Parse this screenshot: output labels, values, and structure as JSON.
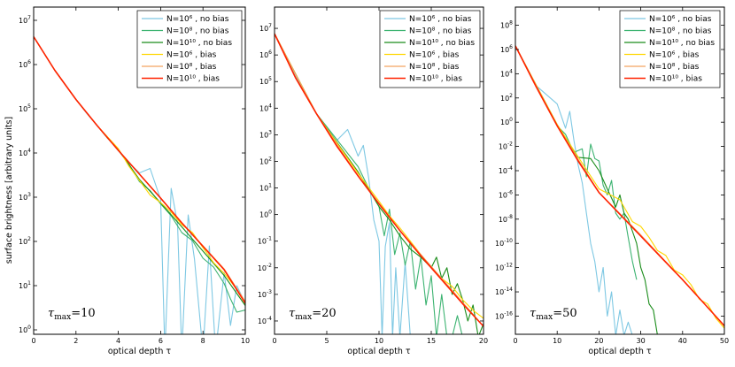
{
  "chart_data": [
    {
      "type": "line",
      "id": "panel1",
      "xlabel": "optical depth τ",
      "ylabel": "surface brightness [arbitrary units]",
      "xlim": [
        0,
        10
      ],
      "ylim_log10": [
        -0.1,
        7.3
      ],
      "x_ticks": [
        0,
        2,
        4,
        6,
        8,
        10
      ],
      "y_tick_exponents": [
        0,
        1,
        2,
        3,
        4,
        5,
        6,
        7
      ],
      "annotation": {
        "text": "τ",
        "sub": "max",
        "value": "=10"
      },
      "legend_position": "top-right",
      "series": [
        {
          "name": "N=10⁶ , no bias",
          "color": "#7ec8e3",
          "x": [
            0,
            1,
            2,
            2.5,
            3,
            3.5,
            4,
            4.5,
            5,
            5.5,
            6,
            6.2,
            6.5,
            6.8,
            7,
            7.3,
            7.6,
            8,
            8.3,
            8.6,
            9,
            9.3,
            9.6,
            10
          ],
          "y_log10": [
            6.63,
            5.87,
            5.21,
            4.9,
            4.62,
            4.34,
            4.05,
            3.78,
            3.55,
            3.65,
            2.95,
            -0.5,
            3.2,
            2.4,
            -0.5,
            2.6,
            1.6,
            -0.5,
            1.9,
            -0.5,
            1.3,
            0.1,
            1.0,
            0.6
          ]
        },
        {
          "name": "N=10⁸ , no bias",
          "color": "#3cb371",
          "x": [
            0,
            1,
            2,
            3,
            3.5,
            4,
            4.5,
            5,
            5.5,
            6,
            6.5,
            7,
            7.5,
            8,
            8.5,
            9,
            9.3,
            9.6,
            10
          ],
          "y_log10": [
            6.63,
            5.87,
            5.21,
            4.62,
            4.33,
            4.08,
            3.75,
            3.35,
            3.15,
            2.85,
            2.58,
            2.2,
            2.02,
            1.62,
            1.42,
            1.05,
            0.7,
            0.4,
            0.45
          ]
        },
        {
          "name": "N=10¹⁰ , no bias",
          "color": "#1a8c1a",
          "x": [
            0,
            1,
            2,
            3,
            4,
            5,
            6,
            7,
            8,
            9,
            10
          ],
          "y_log10": [
            6.63,
            5.87,
            5.21,
            4.62,
            4.07,
            3.4,
            2.87,
            2.33,
            1.78,
            1.23,
            0.55
          ]
        },
        {
          "name": "N=10⁶ , bias",
          "color": "#ffd700",
          "x": [
            0,
            1,
            2,
            3,
            4,
            4.5,
            5,
            5.5,
            6,
            6.5,
            7,
            7.5,
            8,
            8.5,
            9,
            9.5,
            10
          ],
          "y_log10": [
            6.63,
            5.87,
            5.21,
            4.62,
            4.1,
            3.7,
            3.38,
            3.05,
            2.88,
            2.66,
            2.38,
            2.2,
            1.86,
            1.52,
            1.28,
            0.98,
            0.6
          ]
        },
        {
          "name": "N=10⁸ , bias",
          "color": "#f4a460",
          "x": [
            0,
            1,
            2,
            3,
            4,
            5,
            6,
            7,
            8,
            9,
            10
          ],
          "y_log10": [
            6.63,
            5.87,
            5.21,
            4.62,
            4.06,
            3.52,
            2.97,
            2.42,
            1.9,
            1.38,
            0.64
          ]
        },
        {
          "name": "N=10¹⁰ , bias",
          "color": "#ff2200",
          "x": [
            0,
            1,
            2,
            3,
            4,
            5,
            6,
            7,
            8,
            9,
            10
          ],
          "y_log10": [
            6.63,
            5.87,
            5.21,
            4.62,
            4.06,
            3.52,
            2.98,
            2.42,
            1.89,
            1.36,
            0.6
          ]
        }
      ]
    },
    {
      "type": "line",
      "id": "panel2",
      "xlabel": "optical depth τ",
      "ylabel": "",
      "xlim": [
        0,
        20
      ],
      "ylim_log10": [
        -4.5,
        7.8
      ],
      "x_ticks": [
        0,
        5,
        10,
        15,
        20
      ],
      "y_tick_exponents": [
        -4,
        -3,
        -2,
        -1,
        0,
        1,
        2,
        3,
        4,
        5,
        6,
        7
      ],
      "annotation": {
        "text": "τ",
        "sub": "max",
        "value": "=20"
      },
      "legend_position": "top-right",
      "series": [
        {
          "name": "N=10⁶ , no bias",
          "color": "#7ec8e3",
          "x": [
            0,
            2,
            4,
            6,
            7,
            8,
            8.5,
            9,
            9.5,
            10,
            10.3,
            10.6,
            11,
            11.3,
            11.6,
            12,
            12.5,
            13,
            13.5
          ],
          "y_log10": [
            6.8,
            5.2,
            3.8,
            2.8,
            3.2,
            2.2,
            2.6,
            1.4,
            -0.2,
            -1.0,
            -4.6,
            -1.2,
            -0.3,
            -4.6,
            -2.0,
            -4.6,
            -1.8,
            -4.6,
            -4.6
          ]
        },
        {
          "name": "N=10⁸ , no bias",
          "color": "#3cb371",
          "x": [
            0,
            4,
            8,
            9,
            10,
            10.5,
            11,
            11.5,
            12,
            12.5,
            13,
            13.5,
            14,
            14.5,
            15,
            15.5,
            16,
            16.5,
            17,
            17.5,
            18
          ],
          "y_log10": [
            6.8,
            3.8,
            1.8,
            1.0,
            0.3,
            -0.8,
            0.2,
            -1.5,
            -0.7,
            -1.9,
            -1.0,
            -2.8,
            -1.6,
            -3.4,
            -2.3,
            -4.6,
            -3.0,
            -4.6,
            -4.6,
            -3.8,
            -4.6
          ]
        },
        {
          "name": "N=10¹⁰ , no bias",
          "color": "#1a8c1a",
          "x": [
            0,
            4,
            8,
            10,
            11,
            12,
            13,
            14,
            15,
            15.5,
            16,
            16.5,
            17,
            17.5,
            18,
            18.5,
            19,
            19.5,
            20
          ],
          "y_log10": [
            6.8,
            3.8,
            1.6,
            0.3,
            -0.2,
            -0.8,
            -1.3,
            -1.6,
            -2.0,
            -1.6,
            -2.4,
            -2.0,
            -3.0,
            -2.6,
            -3.2,
            -4.0,
            -3.4,
            -4.6,
            -4.1
          ]
        },
        {
          "name": "N=10⁶ , bias",
          "color": "#ffd700",
          "x": [
            0,
            4,
            8,
            10,
            11,
            12,
            13,
            14,
            15,
            16,
            17,
            18,
            19,
            20
          ],
          "y_log10": [
            6.8,
            3.8,
            1.55,
            0.5,
            -0.05,
            -0.5,
            -1.0,
            -1.5,
            -1.95,
            -2.4,
            -2.7,
            -3.2,
            -3.6,
            -3.9
          ]
        },
        {
          "name": "N=10⁸ , bias",
          "color": "#f4a460",
          "x": [
            0,
            4,
            8,
            12,
            16,
            20
          ],
          "y_log10": [
            6.8,
            3.8,
            1.45,
            -0.6,
            -2.4,
            -4.2
          ]
        },
        {
          "name": "N=10¹⁰ , bias",
          "color": "#ff2200",
          "x": [
            0,
            2,
            4,
            6,
            8,
            10,
            12,
            14,
            16,
            18,
            20
          ],
          "y_log10": [
            6.8,
            5.15,
            3.8,
            2.55,
            1.45,
            0.4,
            -0.6,
            -1.55,
            -2.45,
            -3.35,
            -4.2
          ]
        }
      ]
    },
    {
      "type": "line",
      "id": "panel3",
      "xlabel": "optical depth τ",
      "ylabel": "",
      "xlim": [
        0,
        50
      ],
      "ylim_log10": [
        -17.5,
        9.5
      ],
      "x_ticks": [
        0,
        10,
        20,
        30,
        40,
        50
      ],
      "y_tick_exponents": [
        -16,
        -14,
        -12,
        -10,
        -8,
        -6,
        -4,
        -2,
        0,
        2,
        4,
        6,
        8
      ],
      "annotation": {
        "text": "τ",
        "sub": "max",
        "value": "=50"
      },
      "legend_position": "top-right",
      "series": [
        {
          "name": "N=10⁶ , no bias",
          "color": "#7ec8e3",
          "x": [
            0,
            5,
            10,
            11,
            12,
            13,
            14,
            15,
            16,
            17,
            18,
            19,
            20,
            21,
            22,
            23,
            24,
            25,
            26,
            27,
            28
          ],
          "y_log10": [
            6.3,
            3.0,
            1.5,
            0.5,
            -0.5,
            0.9,
            -1.5,
            -3.5,
            -5.0,
            -7.5,
            -10.0,
            -11.5,
            -14.0,
            -12.0,
            -16.0,
            -14.0,
            -17.6,
            -15.5,
            -17.6,
            -16.5,
            -17.6
          ]
        },
        {
          "name": "N=10⁸ , no bias",
          "color": "#3cb371",
          "x": [
            0,
            5,
            10,
            12,
            14,
            16,
            17,
            18,
            19,
            20,
            21,
            22,
            23,
            24,
            25,
            26,
            27,
            28,
            29
          ],
          "y_log10": [
            6.3,
            3.0,
            -0.3,
            -1.0,
            -2.5,
            -2.2,
            -4.5,
            -1.8,
            -3.0,
            -3.2,
            -5.2,
            -6.0,
            -4.8,
            -7.5,
            -8.0,
            -7.5,
            -9.5,
            -11.5,
            -13.0
          ]
        },
        {
          "name": "N=10¹⁰ , no bias",
          "color": "#1a8c1a",
          "x": [
            0,
            10,
            15,
            18,
            20,
            22,
            24,
            25,
            26,
            27,
            28,
            29,
            30,
            31,
            32,
            33,
            34
          ],
          "y_log10": [
            6.3,
            -0.2,
            -2.9,
            -3.0,
            -4.0,
            -5.5,
            -7.0,
            -6.0,
            -7.5,
            -8.0,
            -9.0,
            -10.0,
            -12.0,
            -13.0,
            -15.0,
            -15.5,
            -17.6
          ]
        },
        {
          "name": "N=10⁶ , bias",
          "color": "#ffd700",
          "x": [
            0,
            10,
            20,
            25,
            28,
            30,
            32,
            34,
            36,
            38,
            40,
            42,
            44,
            46,
            48,
            50
          ],
          "y_log10": [
            6.3,
            -0.2,
            -5.5,
            -6.4,
            -8.2,
            -8.6,
            -9.5,
            -10.6,
            -11.0,
            -12.2,
            -12.6,
            -13.4,
            -14.6,
            -15.0,
            -16.2,
            -17.0
          ]
        },
        {
          "name": "N=10⁸ , bias",
          "color": "#f4a460",
          "x": [
            0,
            10,
            20,
            30,
            40,
            50
          ],
          "y_log10": [
            6.3,
            -0.3,
            -5.8,
            -9.3,
            -13.0,
            -16.8
          ]
        },
        {
          "name": "N=10¹⁰ , bias",
          "color": "#ff2200",
          "x": [
            0,
            5,
            10,
            15,
            20,
            25,
            30,
            35,
            40,
            45,
            50
          ],
          "y_log10": [
            6.3,
            2.9,
            -0.3,
            -3.2,
            -5.8,
            -7.6,
            -9.4,
            -11.2,
            -13.0,
            -14.9,
            -16.8
          ]
        }
      ]
    }
  ]
}
